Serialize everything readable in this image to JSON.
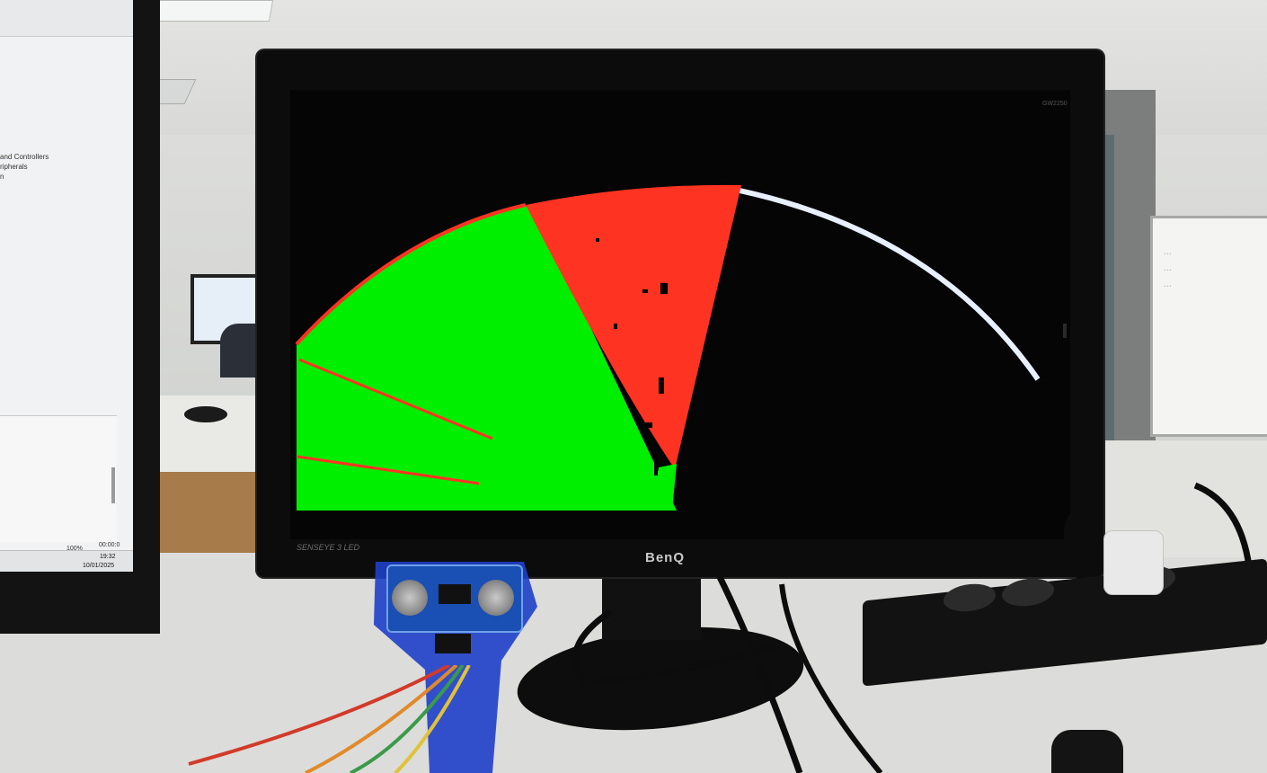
{
  "scene": "Ultrasonic radar sweep displayed on a monitor",
  "left_monitor": {
    "lines": [
      "and Controllers",
      "ripherals",
      "n"
    ],
    "zoom": "100%",
    "duration": "00:00:0",
    "clock": {
      "time": "19:32",
      "date": "10/01/2025"
    }
  },
  "main_monitor": {
    "brand": "BenQ",
    "bezel_label": "SENSEYE 3  LED",
    "model": "GW2250"
  },
  "radar": {
    "background": "#000000",
    "clear_color": "#00ee00",
    "obstacle_color": "#ff3322",
    "sweep_line_color": "#e8f0ff",
    "clear_sector_deg": [
      0,
      65
    ],
    "obstacle_sector_deg": [
      65,
      90
    ]
  },
  "whiteboard": {
    "notes": [
      "...",
      "...",
      "..."
    ]
  }
}
